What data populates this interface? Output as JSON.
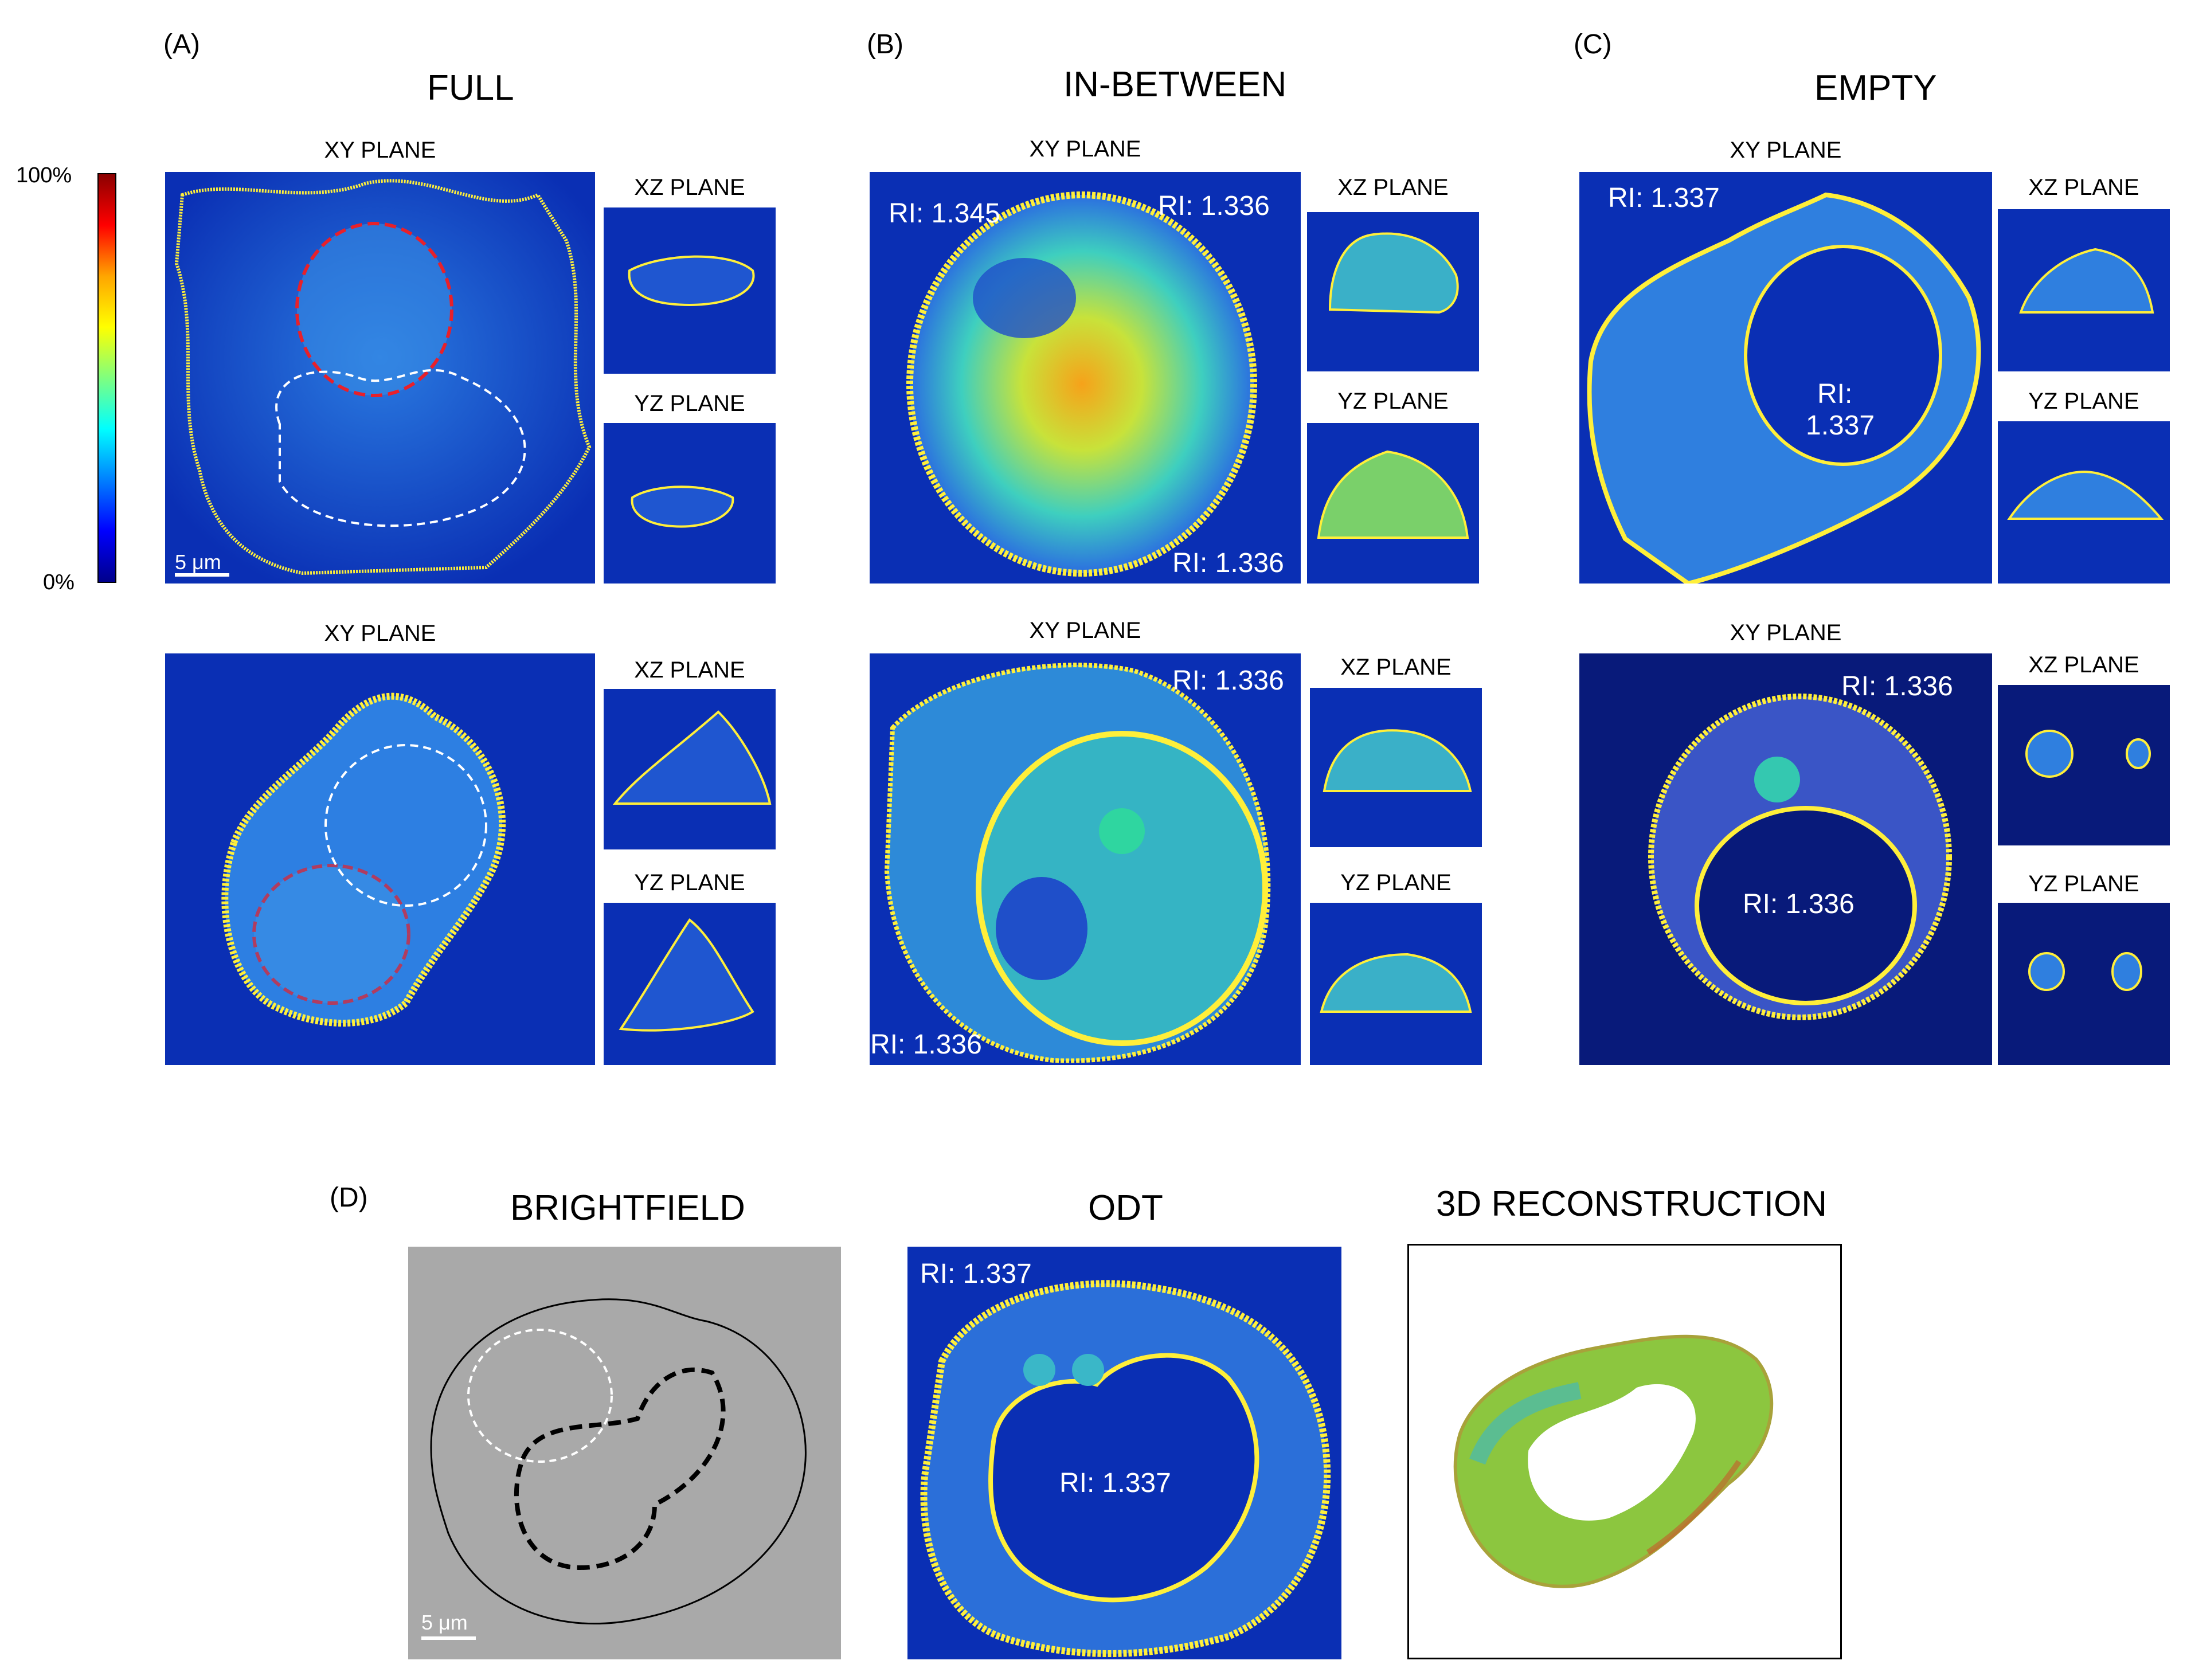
{
  "panels": {
    "a": {
      "letter": "(A)",
      "title": "FULL"
    },
    "b": {
      "letter": "(B)",
      "title": "IN-BETWEEN"
    },
    "c": {
      "letter": "(C)",
      "title": "EMPTY"
    },
    "d": {
      "letter": "(D)"
    }
  },
  "planes": {
    "xy": "XY PLANE",
    "xz": "XZ PLANE",
    "yz": "YZ PLANE"
  },
  "colorbar": {
    "max": "100%",
    "min": "0%",
    "colors": [
      "#8b0000",
      "#ff0000",
      "#ffa500",
      "#ffff00",
      "#7fff7f",
      "#00ffff",
      "#0080ff",
      "#0000ff",
      "#00008b"
    ]
  },
  "scalebar": {
    "label": "5 μm"
  },
  "ri": {
    "b_top_a": "RI: 1.345",
    "b_top_b": "RI: 1.336",
    "b_top_c": "RI: 1.336",
    "b_bot_a": "RI: 1.336",
    "b_bot_b": "RI: 1.336",
    "c_top_a": "RI: 1.337",
    "c_top_b": "RI:",
    "c_top_c": "1.337",
    "c_bot_a": "RI: 1.336",
    "c_bot_b": "RI: 1.336",
    "d_odt_a": "RI: 1.337",
    "d_odt_b": "RI: 1.337"
  },
  "bottom_titles": {
    "brightfield": "BRIGHTFIELD",
    "odt": "ODT",
    "recon": "3D RECONSTRUCTION"
  }
}
